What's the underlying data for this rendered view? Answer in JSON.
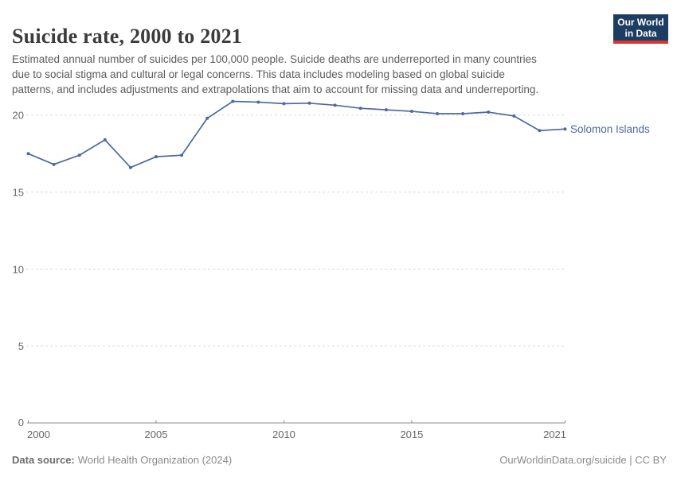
{
  "header": {
    "title": "Suicide rate, 2000 to 2021",
    "subtitle": "Estimated annual number of suicides per 100,000 people. Suicide deaths are underreported in many countries\ndue to social stigma and cultural or legal concerns. This data includes modeling based on global suicide\npatterns, and includes adjustments and extrapolations that aim to account for missing data and underreporting.",
    "logo": {
      "line1": "Our World",
      "line2": "in Data"
    }
  },
  "chart_data": {
    "type": "line",
    "title": "Suicide rate, 2000 to 2021",
    "xlabel": "",
    "ylabel": "",
    "x": [
      2000,
      2001,
      2002,
      2003,
      2004,
      2005,
      2006,
      2007,
      2008,
      2009,
      2010,
      2011,
      2012,
      2013,
      2014,
      2015,
      2016,
      2017,
      2018,
      2019,
      2020,
      2021
    ],
    "series": [
      {
        "name": "Solomon Islands",
        "color": "#4c6a9c",
        "values": [
          17.5,
          16.8,
          17.4,
          18.4,
          16.6,
          17.3,
          17.4,
          19.8,
          20.9,
          20.85,
          20.75,
          20.78,
          20.65,
          20.45,
          20.35,
          20.25,
          20.1,
          20.1,
          20.2,
          19.95,
          19.0,
          19.1
        ]
      }
    ],
    "ylim": [
      0,
      21.8
    ],
    "yticks": [
      0,
      5,
      10,
      15,
      20
    ],
    "xticks": [
      2000,
      2005,
      2010,
      2015,
      2021
    ],
    "grid": "horizontal-dashed",
    "legend_position": "line-end-label"
  },
  "footer": {
    "source_label": "Data source:",
    "source_value": "World Health Organization (2024)",
    "attribution": "OurWorldinData.org/suicide | CC BY"
  },
  "colors": {
    "line": "#4c6a9c",
    "grid": "#dcdcdc",
    "axis": "#8f8f8f",
    "tick_label": "#666666",
    "title": "#3b3b3b",
    "subtitle": "#5b5b5b",
    "footer": "#8a8a8a",
    "logo_bg": "#1d3d63",
    "logo_accent": "#d8352b"
  }
}
